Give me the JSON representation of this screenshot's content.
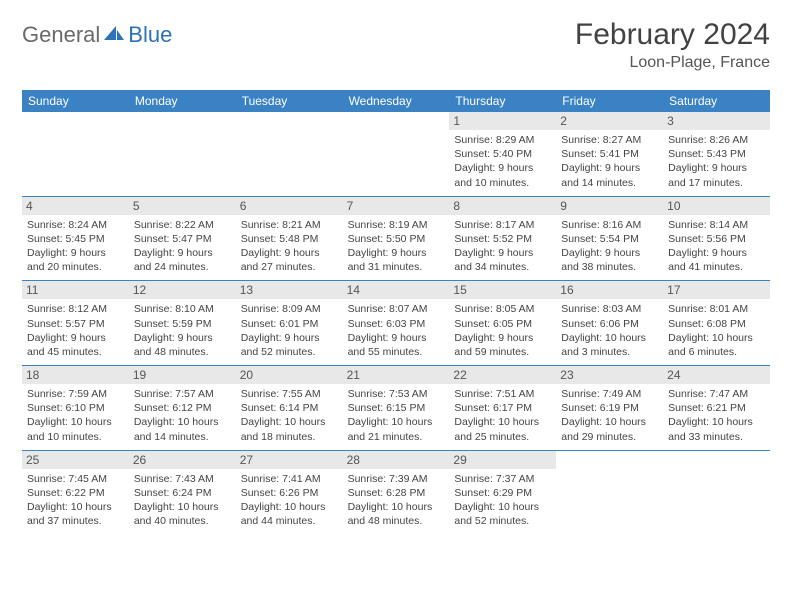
{
  "logo": {
    "general": "General",
    "blue": "Blue"
  },
  "title": "February 2024",
  "location": "Loon-Plage, France",
  "colors": {
    "header_bg": "#3a82c4",
    "header_text": "#ffffff",
    "day_number_bg": "#e8e8e8",
    "day_number_text": "#555555",
    "detail_text": "#444444",
    "row_border": "#3a82c4",
    "logo_blue": "#2c72b8",
    "logo_gray": "#6a6a6a"
  },
  "weekdays": [
    "Sunday",
    "Monday",
    "Tuesday",
    "Wednesday",
    "Thursday",
    "Friday",
    "Saturday"
  ],
  "weeks": [
    [
      {
        "n": "",
        "empty": true
      },
      {
        "n": "",
        "empty": true
      },
      {
        "n": "",
        "empty": true
      },
      {
        "n": "",
        "empty": true
      },
      {
        "n": "1",
        "sunrise": "Sunrise: 8:29 AM",
        "sunset": "Sunset: 5:40 PM",
        "daylight1": "Daylight: 9 hours",
        "daylight2": "and 10 minutes."
      },
      {
        "n": "2",
        "sunrise": "Sunrise: 8:27 AM",
        "sunset": "Sunset: 5:41 PM",
        "daylight1": "Daylight: 9 hours",
        "daylight2": "and 14 minutes."
      },
      {
        "n": "3",
        "sunrise": "Sunrise: 8:26 AM",
        "sunset": "Sunset: 5:43 PM",
        "daylight1": "Daylight: 9 hours",
        "daylight2": "and 17 minutes."
      }
    ],
    [
      {
        "n": "4",
        "sunrise": "Sunrise: 8:24 AM",
        "sunset": "Sunset: 5:45 PM",
        "daylight1": "Daylight: 9 hours",
        "daylight2": "and 20 minutes."
      },
      {
        "n": "5",
        "sunrise": "Sunrise: 8:22 AM",
        "sunset": "Sunset: 5:47 PM",
        "daylight1": "Daylight: 9 hours",
        "daylight2": "and 24 minutes."
      },
      {
        "n": "6",
        "sunrise": "Sunrise: 8:21 AM",
        "sunset": "Sunset: 5:48 PM",
        "daylight1": "Daylight: 9 hours",
        "daylight2": "and 27 minutes."
      },
      {
        "n": "7",
        "sunrise": "Sunrise: 8:19 AM",
        "sunset": "Sunset: 5:50 PM",
        "daylight1": "Daylight: 9 hours",
        "daylight2": "and 31 minutes."
      },
      {
        "n": "8",
        "sunrise": "Sunrise: 8:17 AM",
        "sunset": "Sunset: 5:52 PM",
        "daylight1": "Daylight: 9 hours",
        "daylight2": "and 34 minutes."
      },
      {
        "n": "9",
        "sunrise": "Sunrise: 8:16 AM",
        "sunset": "Sunset: 5:54 PM",
        "daylight1": "Daylight: 9 hours",
        "daylight2": "and 38 minutes."
      },
      {
        "n": "10",
        "sunrise": "Sunrise: 8:14 AM",
        "sunset": "Sunset: 5:56 PM",
        "daylight1": "Daylight: 9 hours",
        "daylight2": "and 41 minutes."
      }
    ],
    [
      {
        "n": "11",
        "sunrise": "Sunrise: 8:12 AM",
        "sunset": "Sunset: 5:57 PM",
        "daylight1": "Daylight: 9 hours",
        "daylight2": "and 45 minutes."
      },
      {
        "n": "12",
        "sunrise": "Sunrise: 8:10 AM",
        "sunset": "Sunset: 5:59 PM",
        "daylight1": "Daylight: 9 hours",
        "daylight2": "and 48 minutes."
      },
      {
        "n": "13",
        "sunrise": "Sunrise: 8:09 AM",
        "sunset": "Sunset: 6:01 PM",
        "daylight1": "Daylight: 9 hours",
        "daylight2": "and 52 minutes."
      },
      {
        "n": "14",
        "sunrise": "Sunrise: 8:07 AM",
        "sunset": "Sunset: 6:03 PM",
        "daylight1": "Daylight: 9 hours",
        "daylight2": "and 55 minutes."
      },
      {
        "n": "15",
        "sunrise": "Sunrise: 8:05 AM",
        "sunset": "Sunset: 6:05 PM",
        "daylight1": "Daylight: 9 hours",
        "daylight2": "and 59 minutes."
      },
      {
        "n": "16",
        "sunrise": "Sunrise: 8:03 AM",
        "sunset": "Sunset: 6:06 PM",
        "daylight1": "Daylight: 10 hours",
        "daylight2": "and 3 minutes."
      },
      {
        "n": "17",
        "sunrise": "Sunrise: 8:01 AM",
        "sunset": "Sunset: 6:08 PM",
        "daylight1": "Daylight: 10 hours",
        "daylight2": "and 6 minutes."
      }
    ],
    [
      {
        "n": "18",
        "sunrise": "Sunrise: 7:59 AM",
        "sunset": "Sunset: 6:10 PM",
        "daylight1": "Daylight: 10 hours",
        "daylight2": "and 10 minutes."
      },
      {
        "n": "19",
        "sunrise": "Sunrise: 7:57 AM",
        "sunset": "Sunset: 6:12 PM",
        "daylight1": "Daylight: 10 hours",
        "daylight2": "and 14 minutes."
      },
      {
        "n": "20",
        "sunrise": "Sunrise: 7:55 AM",
        "sunset": "Sunset: 6:14 PM",
        "daylight1": "Daylight: 10 hours",
        "daylight2": "and 18 minutes."
      },
      {
        "n": "21",
        "sunrise": "Sunrise: 7:53 AM",
        "sunset": "Sunset: 6:15 PM",
        "daylight1": "Daylight: 10 hours",
        "daylight2": "and 21 minutes."
      },
      {
        "n": "22",
        "sunrise": "Sunrise: 7:51 AM",
        "sunset": "Sunset: 6:17 PM",
        "daylight1": "Daylight: 10 hours",
        "daylight2": "and 25 minutes."
      },
      {
        "n": "23",
        "sunrise": "Sunrise: 7:49 AM",
        "sunset": "Sunset: 6:19 PM",
        "daylight1": "Daylight: 10 hours",
        "daylight2": "and 29 minutes."
      },
      {
        "n": "24",
        "sunrise": "Sunrise: 7:47 AM",
        "sunset": "Sunset: 6:21 PM",
        "daylight1": "Daylight: 10 hours",
        "daylight2": "and 33 minutes."
      }
    ],
    [
      {
        "n": "25",
        "sunrise": "Sunrise: 7:45 AM",
        "sunset": "Sunset: 6:22 PM",
        "daylight1": "Daylight: 10 hours",
        "daylight2": "and 37 minutes."
      },
      {
        "n": "26",
        "sunrise": "Sunrise: 7:43 AM",
        "sunset": "Sunset: 6:24 PM",
        "daylight1": "Daylight: 10 hours",
        "daylight2": "and 40 minutes."
      },
      {
        "n": "27",
        "sunrise": "Sunrise: 7:41 AM",
        "sunset": "Sunset: 6:26 PM",
        "daylight1": "Daylight: 10 hours",
        "daylight2": "and 44 minutes."
      },
      {
        "n": "28",
        "sunrise": "Sunrise: 7:39 AM",
        "sunset": "Sunset: 6:28 PM",
        "daylight1": "Daylight: 10 hours",
        "daylight2": "and 48 minutes."
      },
      {
        "n": "29",
        "sunrise": "Sunrise: 7:37 AM",
        "sunset": "Sunset: 6:29 PM",
        "daylight1": "Daylight: 10 hours",
        "daylight2": "and 52 minutes."
      },
      {
        "n": "",
        "empty": true
      },
      {
        "n": "",
        "empty": true
      }
    ]
  ]
}
